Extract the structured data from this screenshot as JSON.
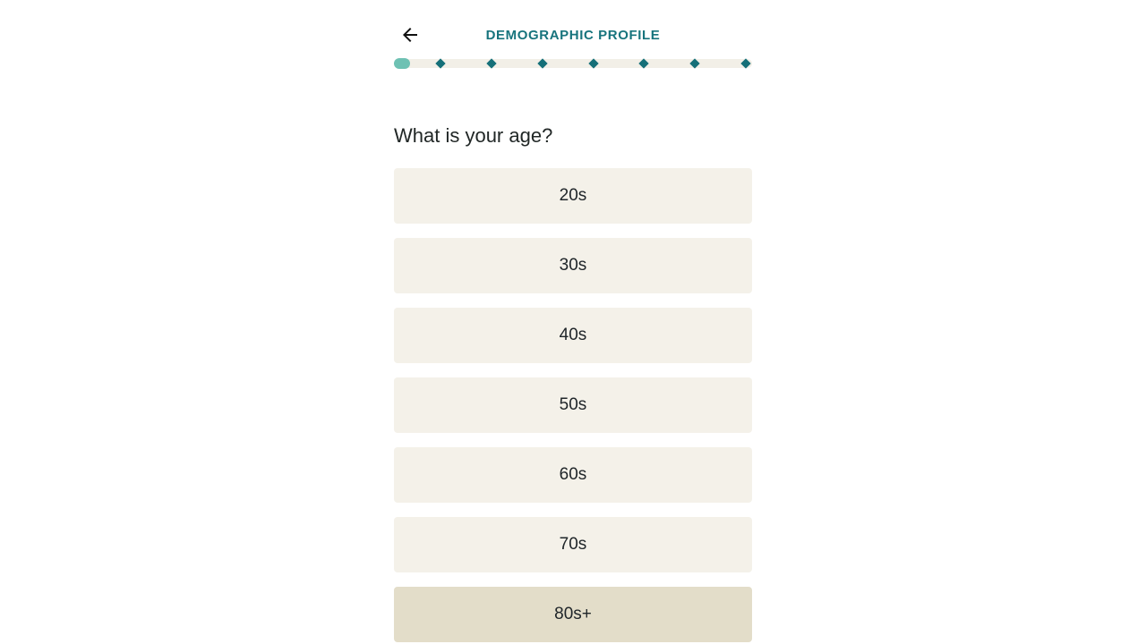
{
  "header": {
    "back_icon": "arrow-left-icon",
    "title": "DEMOGRAPHIC PROFILE"
  },
  "progress": {
    "completed_steps": 1,
    "marker_count": 7,
    "fill_color": "#6EC1B3",
    "track_color": "#F2EFE7",
    "marker_color": "#156F78"
  },
  "question": "What is your age?",
  "options": {
    "items": [
      "20s",
      "30s",
      "40s",
      "50s",
      "60s",
      "70s",
      "80s+"
    ],
    "selected_index": 6,
    "default_bg": "#F4F1E9",
    "selected_bg": "#E3DDC9"
  },
  "colors": {
    "title_teal": "#17747D",
    "text_dark": "#212726",
    "background": "#FFFFFF"
  }
}
